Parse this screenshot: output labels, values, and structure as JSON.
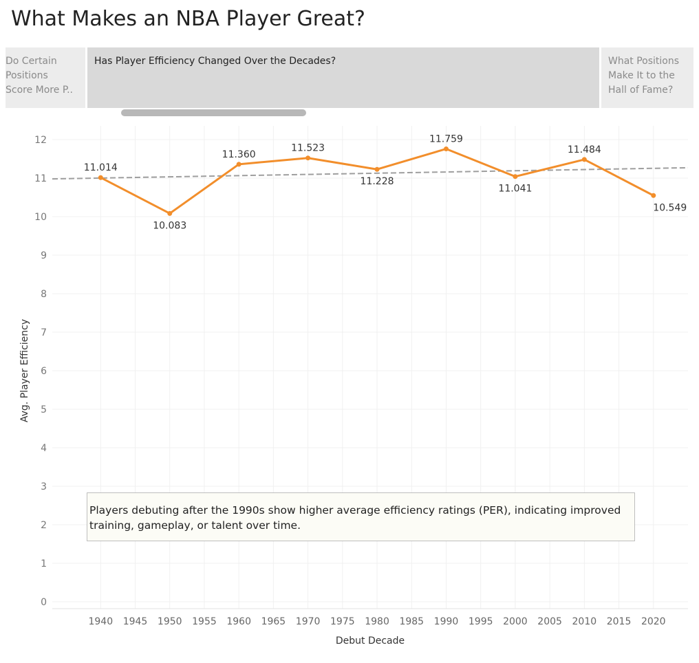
{
  "page": {
    "title": "What Makes an NBA Player Great?"
  },
  "tabs": [
    {
      "label": "Do Certain Positions Score More P..",
      "lines": [
        "Do Certain",
        "Positions",
        "Score More P.."
      ],
      "active": false
    },
    {
      "label": "Has Player Efficiency Changed Over the Decades?",
      "active": true
    },
    {
      "label": "What Positions Make It to the Hall of Fame?",
      "lines": [
        "What Positions",
        "Make It to the",
        "Hall of Fame?"
      ],
      "active": false
    }
  ],
  "annotation": {
    "text": "Players debuting after the 1990s show higher average efficiency ratings (PER), indicating improved training, gameplay, or talent over time."
  },
  "colors": {
    "line": "#f28e2b",
    "trend": "#9e9e9e",
    "grid": "#f0f0f0"
  },
  "chart_data": {
    "type": "line",
    "xlabel": "Debut Decade",
    "ylabel": "Avg. Player Efficiency",
    "xlim": [
      1933,
      2025
    ],
    "ylim": [
      0,
      12
    ],
    "xticks": [
      1940,
      1945,
      1950,
      1955,
      1960,
      1965,
      1970,
      1975,
      1980,
      1985,
      1990,
      1995,
      2000,
      2005,
      2010,
      2015,
      2020
    ],
    "yticks": [
      0,
      1,
      2,
      3,
      4,
      5,
      6,
      7,
      8,
      9,
      10,
      11,
      12
    ],
    "grid": true,
    "series": [
      {
        "x": [
          1940,
          1950,
          1960,
          1970,
          1980,
          1990,
          2000,
          2010,
          2020
        ],
        "y": [
          11.014,
          10.083,
          11.36,
          11.523,
          11.228,
          11.759,
          11.041,
          11.484,
          10.549
        ],
        "labels": [
          "11.014",
          "10.083",
          "11.360",
          "11.523",
          "11.228",
          "11.759",
          "11.041",
          "11.484",
          "10.549"
        ]
      }
    ],
    "trend_line": {
      "x": [
        1933,
        2025
      ],
      "y": [
        10.98,
        11.27
      ]
    }
  }
}
